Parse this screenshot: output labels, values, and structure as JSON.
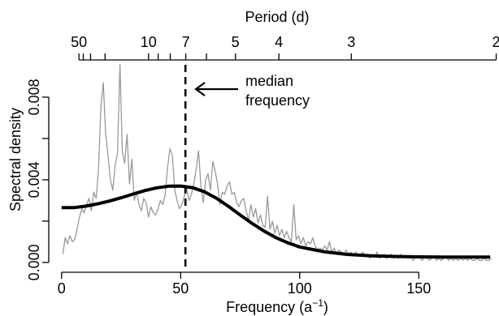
{
  "chart_data": {
    "type": "line",
    "xlabel": "Frequency (a",
    "xlabel_sup": "−1",
    "xlabel_close": ")",
    "ylabel": "Spectral density",
    "top_axis_label": "Period (d)",
    "xlim": [
      -3,
      183
    ],
    "ylim": [
      -0.0002,
      0.0098
    ],
    "x_ticks": [
      0,
      50,
      100,
      150
    ],
    "x_tick_labels": [
      "0",
      "50",
      "100",
      "150"
    ],
    "y_ticks": [
      0.0,
      0.004,
      0.008
    ],
    "y_tick_labels": [
      "0.000",
      "0.004",
      "0.008"
    ],
    "y_minor_ticks": [
      0.002,
      0.006
    ],
    "top_ticks_labeled": [
      {
        "period": 50,
        "label": "50"
      },
      {
        "period": 10,
        "label": "10"
      },
      {
        "period": 7,
        "label": "7"
      },
      {
        "period": 5,
        "label": "5"
      },
      {
        "period": 4,
        "label": "4"
      },
      {
        "period": 3,
        "label": "3"
      },
      {
        "period": 2,
        "label": "2"
      }
    ],
    "top_ticks_minor_periods": [
      40,
      30,
      20,
      9,
      8,
      6
    ],
    "median_frequency": 52,
    "annotation": {
      "line1": "median",
      "line2": "frequency"
    },
    "colors": {
      "raw": "#999999",
      "smooth": "#000000",
      "median": "#000000"
    },
    "series": [
      {
        "values": [
          [
            0.5,
            0.0004
          ],
          [
            1.5,
            0.0012
          ],
          [
            2.5,
            0.0009
          ],
          [
            3.5,
            0.0013
          ],
          [
            4.5,
            0.001
          ],
          [
            5.5,
            0.0011
          ],
          [
            6.5,
            0.0016
          ],
          [
            7.5,
            0.0022
          ],
          [
            8.5,
            0.0026
          ],
          [
            9.5,
            0.0024
          ],
          [
            10.5,
            0.0028
          ],
          [
            11.5,
            0.0031
          ],
          [
            12.5,
            0.0025
          ],
          [
            13.5,
            0.0034
          ],
          [
            14.5,
            0.0031
          ],
          [
            15.5,
            0.0045
          ],
          [
            16.5,
            0.0075
          ],
          [
            17.5,
            0.0087
          ],
          [
            18.5,
            0.0062
          ],
          [
            19.5,
            0.0052
          ],
          [
            20.5,
            0.004
          ],
          [
            21.5,
            0.0035
          ],
          [
            22.5,
            0.0047
          ],
          [
            23.5,
            0.0053
          ],
          [
            24.5,
            0.0096
          ],
          [
            25.5,
            0.0054
          ],
          [
            26.5,
            0.0048
          ],
          [
            27.5,
            0.0062
          ],
          [
            28.5,
            0.0038
          ],
          [
            29.5,
            0.005
          ],
          [
            30.5,
            0.003
          ],
          [
            31.5,
            0.0034
          ],
          [
            32.5,
            0.0028
          ],
          [
            33.5,
            0.0025
          ],
          [
            34.5,
            0.0031
          ],
          [
            35.5,
            0.0029
          ],
          [
            36.5,
            0.0022
          ],
          [
            37.5,
            0.0027
          ],
          [
            38.5,
            0.0024
          ],
          [
            39.5,
            0.0023
          ],
          [
            40.5,
            0.0026
          ],
          [
            41.5,
            0.003
          ],
          [
            42.5,
            0.0028
          ],
          [
            43.5,
            0.0033
          ],
          [
            44.5,
            0.0046
          ],
          [
            45.5,
            0.0055
          ],
          [
            46.5,
            0.0052
          ],
          [
            47.5,
            0.0035
          ],
          [
            48.5,
            0.003
          ],
          [
            49.5,
            0.0026
          ],
          [
            50.5,
            0.0028
          ],
          [
            51.5,
            0.0032
          ],
          [
            52.5,
            0.0036
          ],
          [
            53.5,
            0.003
          ],
          [
            54.5,
            0.0033
          ],
          [
            55.5,
            0.0038
          ],
          [
            56.5,
            0.0045
          ],
          [
            57.5,
            0.0054
          ],
          [
            58.5,
            0.0037
          ],
          [
            59.5,
            0.0029
          ],
          [
            60.5,
            0.004
          ],
          [
            61.5,
            0.0043
          ],
          [
            62.5,
            0.0035
          ],
          [
            63.5,
            0.0049
          ],
          [
            64.5,
            0.0044
          ],
          [
            65.5,
            0.0038
          ],
          [
            66.5,
            0.0028
          ],
          [
            67.5,
            0.0034
          ],
          [
            68.5,
            0.0033
          ],
          [
            69.5,
            0.0037
          ],
          [
            70.5,
            0.0039
          ],
          [
            71.5,
            0.0033
          ],
          [
            72.5,
            0.0034
          ],
          [
            73.5,
            0.0029
          ],
          [
            74.5,
            0.0027
          ],
          [
            75.5,
            0.003
          ],
          [
            76.5,
            0.0031
          ],
          [
            77.5,
            0.0025
          ],
          [
            78.5,
            0.002
          ],
          [
            79.5,
            0.0028
          ],
          [
            80.5,
            0.0022
          ],
          [
            81.5,
            0.0026
          ],
          [
            82.5,
            0.0019
          ],
          [
            83.5,
            0.0023
          ],
          [
            84.5,
            0.0018
          ],
          [
            85.5,
            0.0017
          ],
          [
            86.5,
            0.0032
          ],
          [
            87.5,
            0.0016
          ],
          [
            88.5,
            0.002
          ],
          [
            89.5,
            0.0014
          ],
          [
            90.5,
            0.0018
          ],
          [
            91.5,
            0.0013
          ],
          [
            92.5,
            0.0016
          ],
          [
            93.5,
            0.0012
          ],
          [
            94.5,
            0.0015
          ],
          [
            95.5,
            0.0012
          ],
          [
            96.5,
            0.001
          ],
          [
            97.5,
            0.0028
          ],
          [
            98.5,
            0.0011
          ],
          [
            99.5,
            0.0013
          ],
          [
            100.5,
            0.0009
          ],
          [
            101.5,
            0.0012
          ],
          [
            102.5,
            0.0008
          ],
          [
            103.5,
            0.001
          ],
          [
            104.5,
            0.0009
          ],
          [
            105.5,
            0.0012
          ],
          [
            106.5,
            0.0008
          ],
          [
            107.5,
            0.0006
          ],
          [
            108.5,
            0.0007
          ],
          [
            109.5,
            0.0006
          ],
          [
            110.5,
            0.0008
          ],
          [
            111.5,
            0.0006
          ],
          [
            112.5,
            0.001
          ],
          [
            113.5,
            0.0005
          ],
          [
            114.5,
            0.0007
          ],
          [
            115.5,
            0.0004
          ],
          [
            116.5,
            0.0006
          ],
          [
            117.5,
            0.0005
          ],
          [
            118.5,
            0.0004
          ],
          [
            119.5,
            0.0006
          ],
          [
            120.5,
            0.0004
          ],
          [
            121.5,
            0.0005
          ],
          [
            122.5,
            0.0003
          ],
          [
            123.5,
            0.0005
          ],
          [
            124.5,
            0.0003
          ],
          [
            125.5,
            0.0004
          ],
          [
            126.5,
            0.0005
          ],
          [
            127.5,
            0.0003
          ],
          [
            128.5,
            0.0004
          ],
          [
            129.5,
            0.0002
          ],
          [
            130.5,
            0.0004
          ],
          [
            131.5,
            0.0003
          ],
          [
            132.5,
            0.0005
          ],
          [
            133.5,
            0.0002
          ],
          [
            134.5,
            0.0003
          ],
          [
            135.5,
            0.0004
          ],
          [
            136.5,
            0.0002
          ],
          [
            137.5,
            0.0003
          ],
          [
            138.5,
            0.0004
          ],
          [
            139.5,
            0.0002
          ],
          [
            140.5,
            0.0003
          ],
          [
            141.5,
            0.0002
          ],
          [
            142.5,
            0.0004
          ],
          [
            143.5,
            0.0002
          ],
          [
            144.5,
            0.0003
          ],
          [
            145.5,
            0.0002
          ],
          [
            146.5,
            0.0003
          ],
          [
            147.5,
            0.0001
          ],
          [
            148.5,
            0.0002
          ],
          [
            149.5,
            0.0003
          ],
          [
            150.5,
            0.0002
          ],
          [
            151.5,
            0.0001
          ],
          [
            152.5,
            0.0003
          ],
          [
            153.5,
            0.0002
          ],
          [
            154.5,
            0.0001
          ],
          [
            155.5,
            0.0002
          ],
          [
            156.5,
            0.0003
          ],
          [
            157.5,
            0.0001
          ],
          [
            158.5,
            0.0002
          ],
          [
            159.5,
            0.0001
          ],
          [
            160.5,
            0.0002
          ],
          [
            161.5,
            0.0003
          ],
          [
            162.5,
            0.0001
          ],
          [
            163.5,
            0.0002
          ],
          [
            164.5,
            0.0001
          ],
          [
            165.5,
            0.0002
          ],
          [
            166.5,
            0.0001
          ],
          [
            167.5,
            0.0002
          ],
          [
            168.5,
            0.0001
          ],
          [
            169.5,
            0.0002
          ],
          [
            170.5,
            0.0001
          ],
          [
            171.5,
            0.0002
          ],
          [
            172.5,
            0.0001
          ],
          [
            173.5,
            0.0001
          ],
          [
            174.5,
            0.0002
          ],
          [
            175.5,
            0.0001
          ],
          [
            176.5,
            0.0001
          ],
          [
            177.5,
            0.0002
          ],
          [
            178.5,
            0.0001
          ],
          [
            179.5,
            0.0001
          ],
          [
            180.5,
            0.0002
          ]
        ]
      },
      {
        "values": [
          [
            0,
            0.00265
          ],
          [
            5,
            0.00265
          ],
          [
            10,
            0.00272
          ],
          [
            15,
            0.00283
          ],
          [
            20,
            0.00297
          ],
          [
            25,
            0.00313
          ],
          [
            30,
            0.00331
          ],
          [
            35,
            0.00348
          ],
          [
            40,
            0.00361
          ],
          [
            45,
            0.00369
          ],
          [
            50,
            0.0037
          ],
          [
            55,
            0.00362
          ],
          [
            60,
            0.00342
          ],
          [
            65,
            0.00311
          ],
          [
            70,
            0.00272
          ],
          [
            75,
            0.0023
          ],
          [
            80,
            0.00189
          ],
          [
            85,
            0.00152
          ],
          [
            90,
            0.0012
          ],
          [
            95,
            0.00095
          ],
          [
            100,
            0.00075
          ],
          [
            110,
            0.00052
          ],
          [
            120,
            0.00039
          ],
          [
            130,
            0.00032
          ],
          [
            140,
            0.00029
          ],
          [
            150,
            0.00027
          ],
          [
            160,
            0.00026
          ],
          [
            170,
            0.00026
          ],
          [
            180,
            0.00026
          ]
        ]
      }
    ]
  }
}
